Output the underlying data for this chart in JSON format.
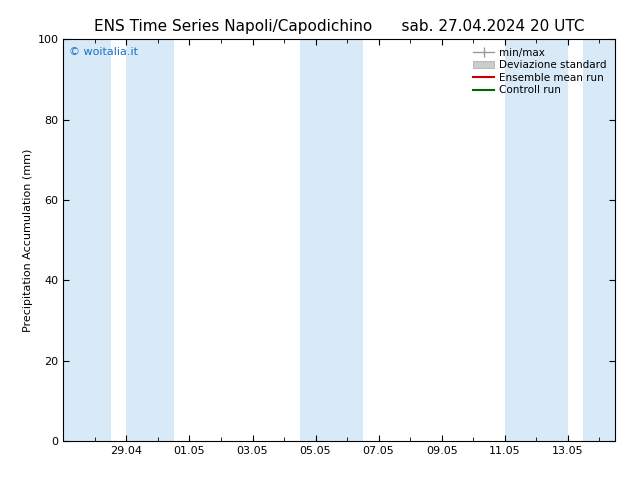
{
  "title_left": "ENS Time Series Napoli/Capodichino",
  "title_right": "sab. 27.04.2024 20 UTC",
  "ylabel": "Precipitation Accumulation (mm)",
  "ylim": [
    0,
    100
  ],
  "yticks": [
    0,
    20,
    40,
    60,
    80,
    100
  ],
  "copyright_text": "© woitalia.it",
  "copyright_color": "#1a6fc4",
  "background_color": "#ffffff",
  "plot_bg_color": "#ffffff",
  "shaded_bands": [
    {
      "xmin": 0.0,
      "xmax": 1.5
    },
    {
      "xmin": 2.0,
      "xmax": 3.5
    },
    {
      "xmin": 7.5,
      "xmax": 9.5
    },
    {
      "xmin": 14.0,
      "xmax": 16.0
    },
    {
      "xmin": 16.5,
      "xmax": 18.0
    }
  ],
  "band_color": "#d8eaf8",
  "band_alpha": 1.0,
  "xtick_labels": [
    "29.04",
    "01.05",
    "03.05",
    "05.05",
    "07.05",
    "09.05",
    "11.05",
    "13.05"
  ],
  "xtick_positions": [
    2,
    4,
    6,
    8,
    10,
    12,
    14,
    16
  ],
  "xmin": 0.0,
  "xmax": 17.5,
  "legend_items": [
    {
      "label": "min/max",
      "color": "#999999",
      "lw": 1.0
    },
    {
      "label": "Deviazione standard",
      "color": "#cccccc",
      "lw": 6
    },
    {
      "label": "Ensemble mean run",
      "color": "#cc0000",
      "lw": 1.5
    },
    {
      "label": "Controll run",
      "color": "#006600",
      "lw": 1.5
    }
  ],
  "title_fontsize": 11,
  "axis_fontsize": 8,
  "tick_fontsize": 8,
  "legend_fontsize": 7.5,
  "copyright_fontsize": 8,
  "spine_color": "#000000"
}
